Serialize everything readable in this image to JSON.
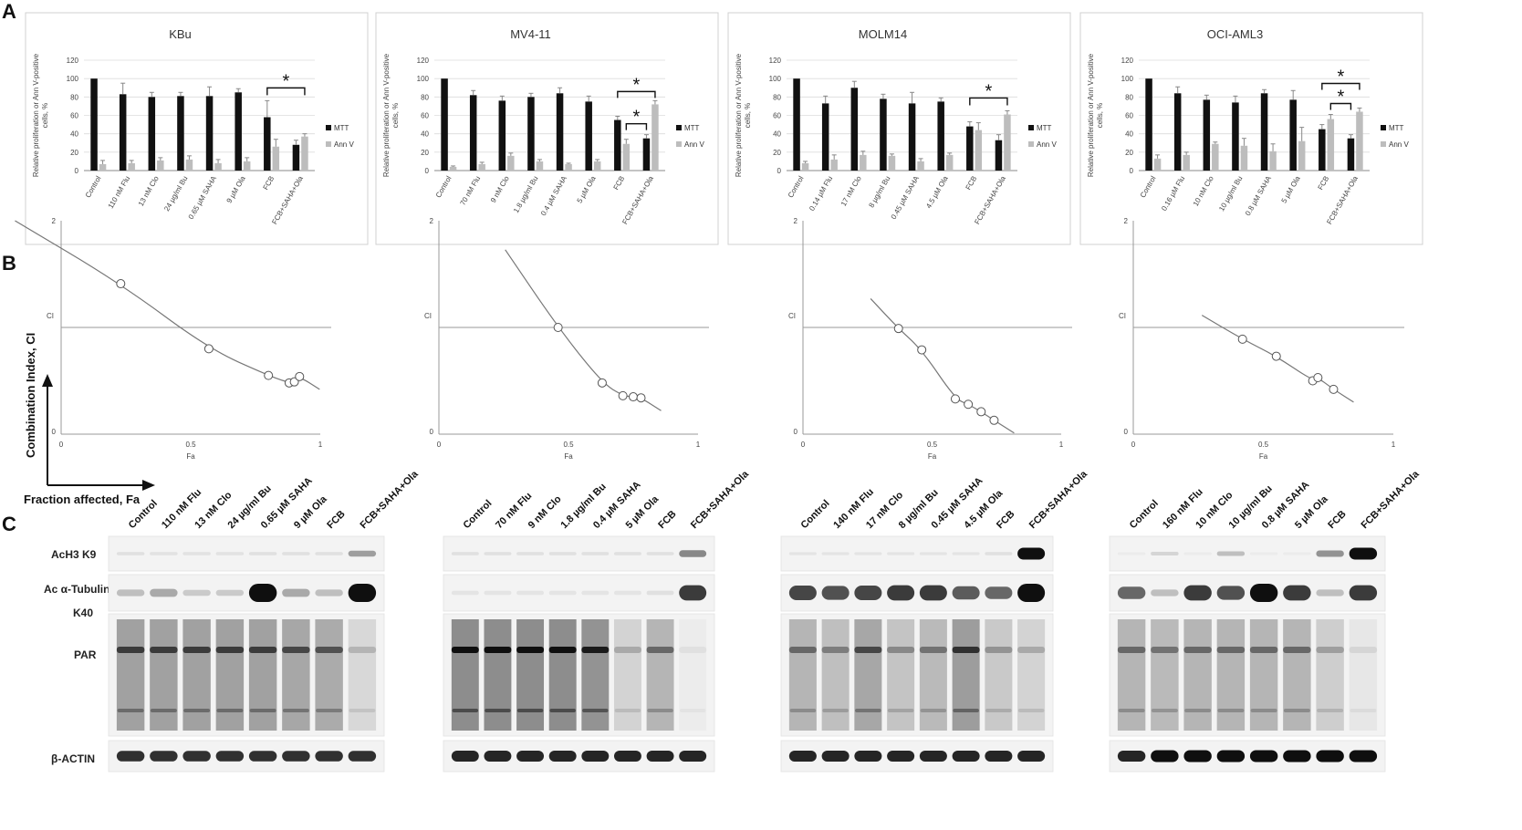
{
  "panels": {
    "A": "A",
    "B": "B",
    "C": "C"
  },
  "proliferation": {
    "ylabel_line1": "Relative proliferation or Ann V-positive",
    "ylabel_line2": "cells, %",
    "legend": [
      "MTT",
      "Ann V"
    ],
    "yticks": [
      "0",
      "20",
      "40",
      "60",
      "80",
      "100",
      "120"
    ],
    "significance_marker": "*"
  },
  "combination_index": {
    "ylabel": "Combination Index, CI",
    "xlabel": "Fraction affected, Fa",
    "xlabel_short": "Fa",
    "ci_label": "CI",
    "xticks": [
      "0",
      "0.5",
      "1"
    ],
    "yticks": [
      "0",
      "2"
    ]
  },
  "chart_data": [
    {
      "type": "bar",
      "title": "KBu",
      "categories": [
        "Control",
        "110 nM Flu",
        "13 nM Clo",
        "24 µg/ml Bu",
        "0.65 µM SAHA",
        "9 µM Ola",
        "FCB",
        "FCB+SAHA+Ola"
      ],
      "series": [
        {
          "name": "MTT",
          "values": [
            100,
            83,
            80,
            81,
            81,
            85,
            58,
            28
          ],
          "errors": [
            0,
            12,
            5,
            4,
            10,
            4,
            18,
            5
          ]
        },
        {
          "name": "Ann V",
          "values": [
            7,
            8,
            11,
            12,
            8,
            10,
            26,
            37
          ],
          "errors": [
            4,
            3,
            3,
            4,
            4,
            4,
            8,
            3
          ]
        }
      ],
      "ylim": [
        0,
        120
      ],
      "significance": [
        [
          6,
          7
        ]
      ]
    },
    {
      "type": "bar",
      "title": "MV4-11",
      "categories": [
        "Control",
        "70 nM Flu",
        "9 nM Clo",
        "1.8 µg/ml Bu",
        "0.4 µM SAHA",
        "5 µM Ola",
        "FCB",
        "FCB+SAHA+Ola"
      ],
      "series": [
        {
          "name": "MTT",
          "values": [
            100,
            82,
            76,
            80,
            84,
            75,
            55,
            35
          ],
          "errors": [
            0,
            5,
            5,
            4,
            6,
            6,
            4,
            4
          ]
        },
        {
          "name": "Ann V",
          "values": [
            4,
            7,
            16,
            10,
            7,
            10,
            29,
            72
          ],
          "errors": [
            1,
            2,
            3,
            2,
            1,
            2,
            5,
            4
          ]
        }
      ],
      "ylim": [
        0,
        120
      ],
      "significance": [
        [
          6,
          7
        ],
        [
          6,
          7
        ]
      ]
    },
    {
      "type": "bar",
      "title": "MOLM14",
      "categories": [
        "Control",
        "0.14 µM Flu",
        "17 nM Clo",
        "8 µg/ml Bu",
        "0.45 µM SAHA",
        "4.5 µM Ola",
        "FCB",
        "FCB+SAHA+Ola"
      ],
      "series": [
        {
          "name": "MTT",
          "values": [
            100,
            73,
            90,
            78,
            73,
            75,
            48,
            33
          ],
          "errors": [
            0,
            8,
            7,
            5,
            12,
            4,
            5,
            6
          ]
        },
        {
          "name": "Ann V",
          "values": [
            8,
            12,
            17,
            16,
            10,
            17,
            44,
            61
          ],
          "errors": [
            2,
            5,
            4,
            2,
            3,
            2,
            8,
            4
          ]
        }
      ],
      "ylim": [
        0,
        120
      ],
      "significance": [
        [
          6,
          7
        ]
      ]
    },
    {
      "type": "bar",
      "title": "OCI-AML3",
      "categories": [
        "Control",
        "0.16 µM Flu",
        "10 nM Clo",
        "10 µg/ml Bu",
        "0.8 µM SAHA",
        "5 µM Ola",
        "FCB",
        "FCB+SAHA+Ola"
      ],
      "series": [
        {
          "name": "MTT",
          "values": [
            100,
            84,
            77,
            74,
            84,
            77,
            45,
            35
          ],
          "errors": [
            0,
            7,
            5,
            7,
            4,
            10,
            5,
            4
          ]
        },
        {
          "name": "Ann V",
          "values": [
            13,
            17,
            29,
            27,
            21,
            32,
            56,
            64
          ],
          "errors": [
            4,
            3,
            2,
            8,
            8,
            15,
            5,
            4
          ]
        }
      ],
      "ylim": [
        0,
        120
      ],
      "significance": [
        [
          6,
          7
        ],
        [
          6,
          7
        ]
      ]
    },
    {
      "type": "scatter",
      "title": "",
      "x": [
        0.23,
        0.57,
        0.8,
        0.88,
        0.9,
        0.92
      ],
      "y": [
        1.41,
        0.8,
        0.55,
        0.48,
        0.49,
        0.54
      ],
      "xlim": [
        0,
        1
      ],
      "ylim": [
        0,
        2
      ]
    },
    {
      "type": "scatter",
      "title": "",
      "x": [
        0.46,
        0.63,
        0.71,
        0.75,
        0.78
      ],
      "y": [
        1.0,
        0.48,
        0.36,
        0.35,
        0.34
      ],
      "xlim": [
        0,
        1
      ],
      "ylim": [
        0,
        2
      ]
    },
    {
      "type": "scatter",
      "title": "",
      "x": [
        0.37,
        0.46,
        0.59,
        0.64,
        0.69,
        0.74
      ],
      "y": [
        0.99,
        0.79,
        0.33,
        0.28,
        0.21,
        0.13
      ],
      "xlim": [
        0,
        1
      ],
      "ylim": [
        0,
        2
      ]
    },
    {
      "type": "scatter",
      "title": "",
      "x": [
        0.42,
        0.55,
        0.69,
        0.71,
        0.77
      ],
      "y": [
        0.89,
        0.73,
        0.5,
        0.53,
        0.42
      ],
      "xlim": [
        0,
        1
      ],
      "ylim": [
        0,
        2
      ]
    }
  ],
  "blots": {
    "row_labels": [
      "AcH3 K9",
      "Ac α-Tubulin",
      "K40",
      "PAR",
      "β-ACTIN"
    ],
    "lanes": [
      [
        "Control",
        "110 nM Flu",
        "13 nM Clo",
        "24 µg/ml Bu",
        "0.65 µM SAHA",
        "9 µM Ola",
        "FCB",
        "FCB+SAHA+Ola"
      ],
      [
        "Control",
        "70 nM Flu",
        "9 nM Clo",
        "1.8 µg/ml Bu",
        "0.4 µM SAHA",
        "5 µM Ola",
        "FCB",
        "FCB+SAHA+Ola"
      ],
      [
        "Control",
        "140 nM Flu",
        "17 nM Clo",
        "8 µg/ml Bu",
        "0.45 µM SAHA",
        "4.5 µM Ola",
        "FCB",
        "FCB+SAHA+Ola"
      ],
      [
        "Control",
        "160 nM Flu",
        "10 nM Clo",
        "10 µg/ml Bu",
        "0.8 µM SAHA",
        "5 µM Ola",
        "FCB",
        "FCB+SAHA+Ola"
      ]
    ],
    "acetyl_h3": [
      [
        0.05,
        0.04,
        0.04,
        0.04,
        0.05,
        0.05,
        0.05,
        0.35
      ],
      [
        0.05,
        0.05,
        0.05,
        0.05,
        0.05,
        0.05,
        0.05,
        0.45
      ],
      [
        0.03,
        0.03,
        0.03,
        0.03,
        0.03,
        0.03,
        0.05,
        1.0
      ],
      [
        0.0,
        0.1,
        0.0,
        0.2,
        0.0,
        0.0,
        0.4,
        1.0
      ]
    ],
    "acetyl_tubulin": [
      [
        0.2,
        0.3,
        0.15,
        0.15,
        1.0,
        0.3,
        0.2,
        1.0
      ],
      [
        0.03,
        0.03,
        0.03,
        0.03,
        0.03,
        0.03,
        0.05,
        0.8
      ],
      [
        0.75,
        0.7,
        0.75,
        0.8,
        0.8,
        0.65,
        0.6,
        1.0
      ],
      [
        0.6,
        0.2,
        0.8,
        0.7,
        1.0,
        0.8,
        0.2,
        0.8
      ]
    ],
    "par": [
      [
        0.8,
        0.8,
        0.8,
        0.8,
        0.8,
        0.75,
        0.7,
        0.25
      ],
      [
        1.0,
        1.0,
        1.0,
        1.0,
        0.95,
        0.3,
        0.6,
        0.05
      ],
      [
        0.6,
        0.5,
        0.75,
        0.45,
        0.55,
        0.85,
        0.4,
        0.3
      ],
      [
        0.6,
        0.55,
        0.6,
        0.6,
        0.6,
        0.6,
        0.35,
        0.1
      ]
    ],
    "beta_actin": [
      [
        0.85,
        0.85,
        0.85,
        0.85,
        0.85,
        0.85,
        0.85,
        0.85
      ],
      [
        0.9,
        0.9,
        0.9,
        0.9,
        0.9,
        0.9,
        0.9,
        0.9
      ],
      [
        0.9,
        0.9,
        0.9,
        0.9,
        0.9,
        0.9,
        0.9,
        0.9
      ],
      [
        0.9,
        1.0,
        1.0,
        1.0,
        1.0,
        1.0,
        1.0,
        1.0
      ]
    ]
  }
}
